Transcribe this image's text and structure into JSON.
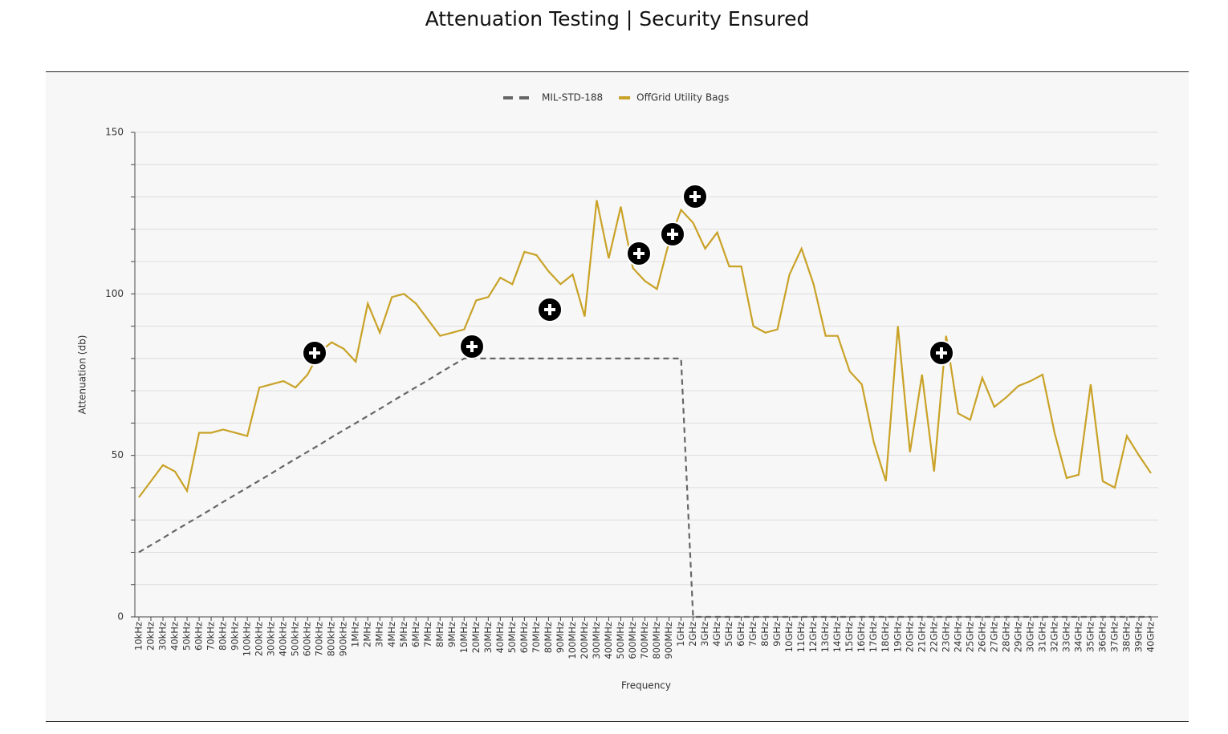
{
  "page_title": "Attenuation Testing | Security Ensured",
  "chart_data": {
    "type": "line",
    "x_label": "Frequency",
    "y_label": "Attenuation (db)",
    "categories": [
      "10kHz",
      "20kHz",
      "30kHz",
      "40kHz",
      "50kHz",
      "60kHz",
      "70kHz",
      "80kHz",
      "90kHz",
      "100kHz",
      "200kHz",
      "300kHz",
      "400kHz",
      "500kHz",
      "600kHz",
      "700kHz",
      "800kHz",
      "900kHz",
      "1MHz",
      "2MHz",
      "3MHz",
      "4MHz",
      "5MHz",
      "6MHz",
      "7MHz",
      "8MHz",
      "9MHz",
      "10MHz",
      "20MHz",
      "30MHz",
      "40MHz",
      "50MHz",
      "60MHz",
      "70MHz",
      "80MHz",
      "90MHz",
      "100MHz",
      "200MHz",
      "300MHz",
      "400MHz",
      "500MHz",
      "600MHz",
      "700MHz",
      "800MHz",
      "900MHz",
      "1GHz",
      "2GHz",
      "3GHz",
      "4GHz",
      "5GHz",
      "6GHz",
      "7GHz",
      "8GHz",
      "9GHz",
      "10GHz",
      "11GHz",
      "12GHz",
      "13GHz",
      "14GHz",
      "15GHz",
      "16GHz",
      "17GHz",
      "18GHz",
      "19GHz",
      "20GHz",
      "21GHz",
      "22GHz",
      "23GHz",
      "24GHz",
      "25GHz",
      "26GHz",
      "27GHz",
      "28GHz",
      "29GHz",
      "30GHz",
      "31GHz",
      "32GHz",
      "33GHz",
      "34GHz",
      "35GHz",
      "36GHz",
      "37GHz",
      "38GHz",
      "39GHz",
      "40GHz"
    ],
    "series": [
      {
        "name": "MIL-STD-188",
        "color": "#666666",
        "dashed": true,
        "values": [
          20,
          22.2,
          24.4,
          26.7,
          28.9,
          31.1,
          33.3,
          35.6,
          37.8,
          40,
          42.2,
          44.4,
          46.7,
          48.9,
          51.1,
          53.3,
          55.6,
          57.8,
          60,
          62.2,
          64.4,
          66.7,
          68.9,
          71.1,
          73.3,
          75.6,
          77.8,
          80,
          80,
          80,
          80,
          80,
          80,
          80,
          80,
          80,
          80,
          80,
          80,
          80,
          80,
          80,
          80,
          80,
          80,
          80,
          0,
          0,
          0,
          0,
          0,
          0,
          0,
          0,
          0,
          0,
          0,
          0,
          0,
          0,
          0,
          0,
          0,
          0,
          0,
          0,
          0,
          0,
          0,
          0,
          0,
          0,
          0,
          0,
          0,
          0,
          0,
          0,
          0,
          0,
          0,
          0,
          0,
          0,
          0
        ]
      },
      {
        "name": "OffGrid Utility Bags",
        "color": "#c9a227",
        "dashed": false,
        "values": [
          37,
          42,
          47,
          45,
          39,
          57,
          57,
          58,
          57,
          56,
          71,
          72,
          73,
          71,
          75,
          82,
          85,
          83,
          79,
          97,
          88,
          99,
          100,
          97,
          92,
          87,
          88,
          89,
          98,
          99,
          105,
          103,
          113,
          112,
          107,
          103,
          106,
          93,
          129,
          111,
          127,
          108,
          104,
          101.5,
          116,
          126,
          122,
          114,
          119,
          108.5,
          108.5,
          90,
          88,
          89,
          106,
          114,
          103,
          87,
          87,
          76,
          72,
          54,
          42,
          90,
          51,
          75,
          45,
          87,
          63,
          61,
          74,
          65,
          68,
          71.5,
          73,
          75,
          57,
          43,
          44,
          72,
          42,
          40,
          56,
          50,
          44.5
        ]
      }
    ],
    "ylim": [
      0,
      150
    ],
    "yticks": [
      0,
      50,
      100,
      150
    ],
    "ygrid": [
      0,
      10,
      20,
      30,
      40,
      50,
      60,
      70,
      80,
      90,
      100,
      110,
      120,
      130,
      140,
      150
    ],
    "grid": true,
    "legend": "top"
  }
}
